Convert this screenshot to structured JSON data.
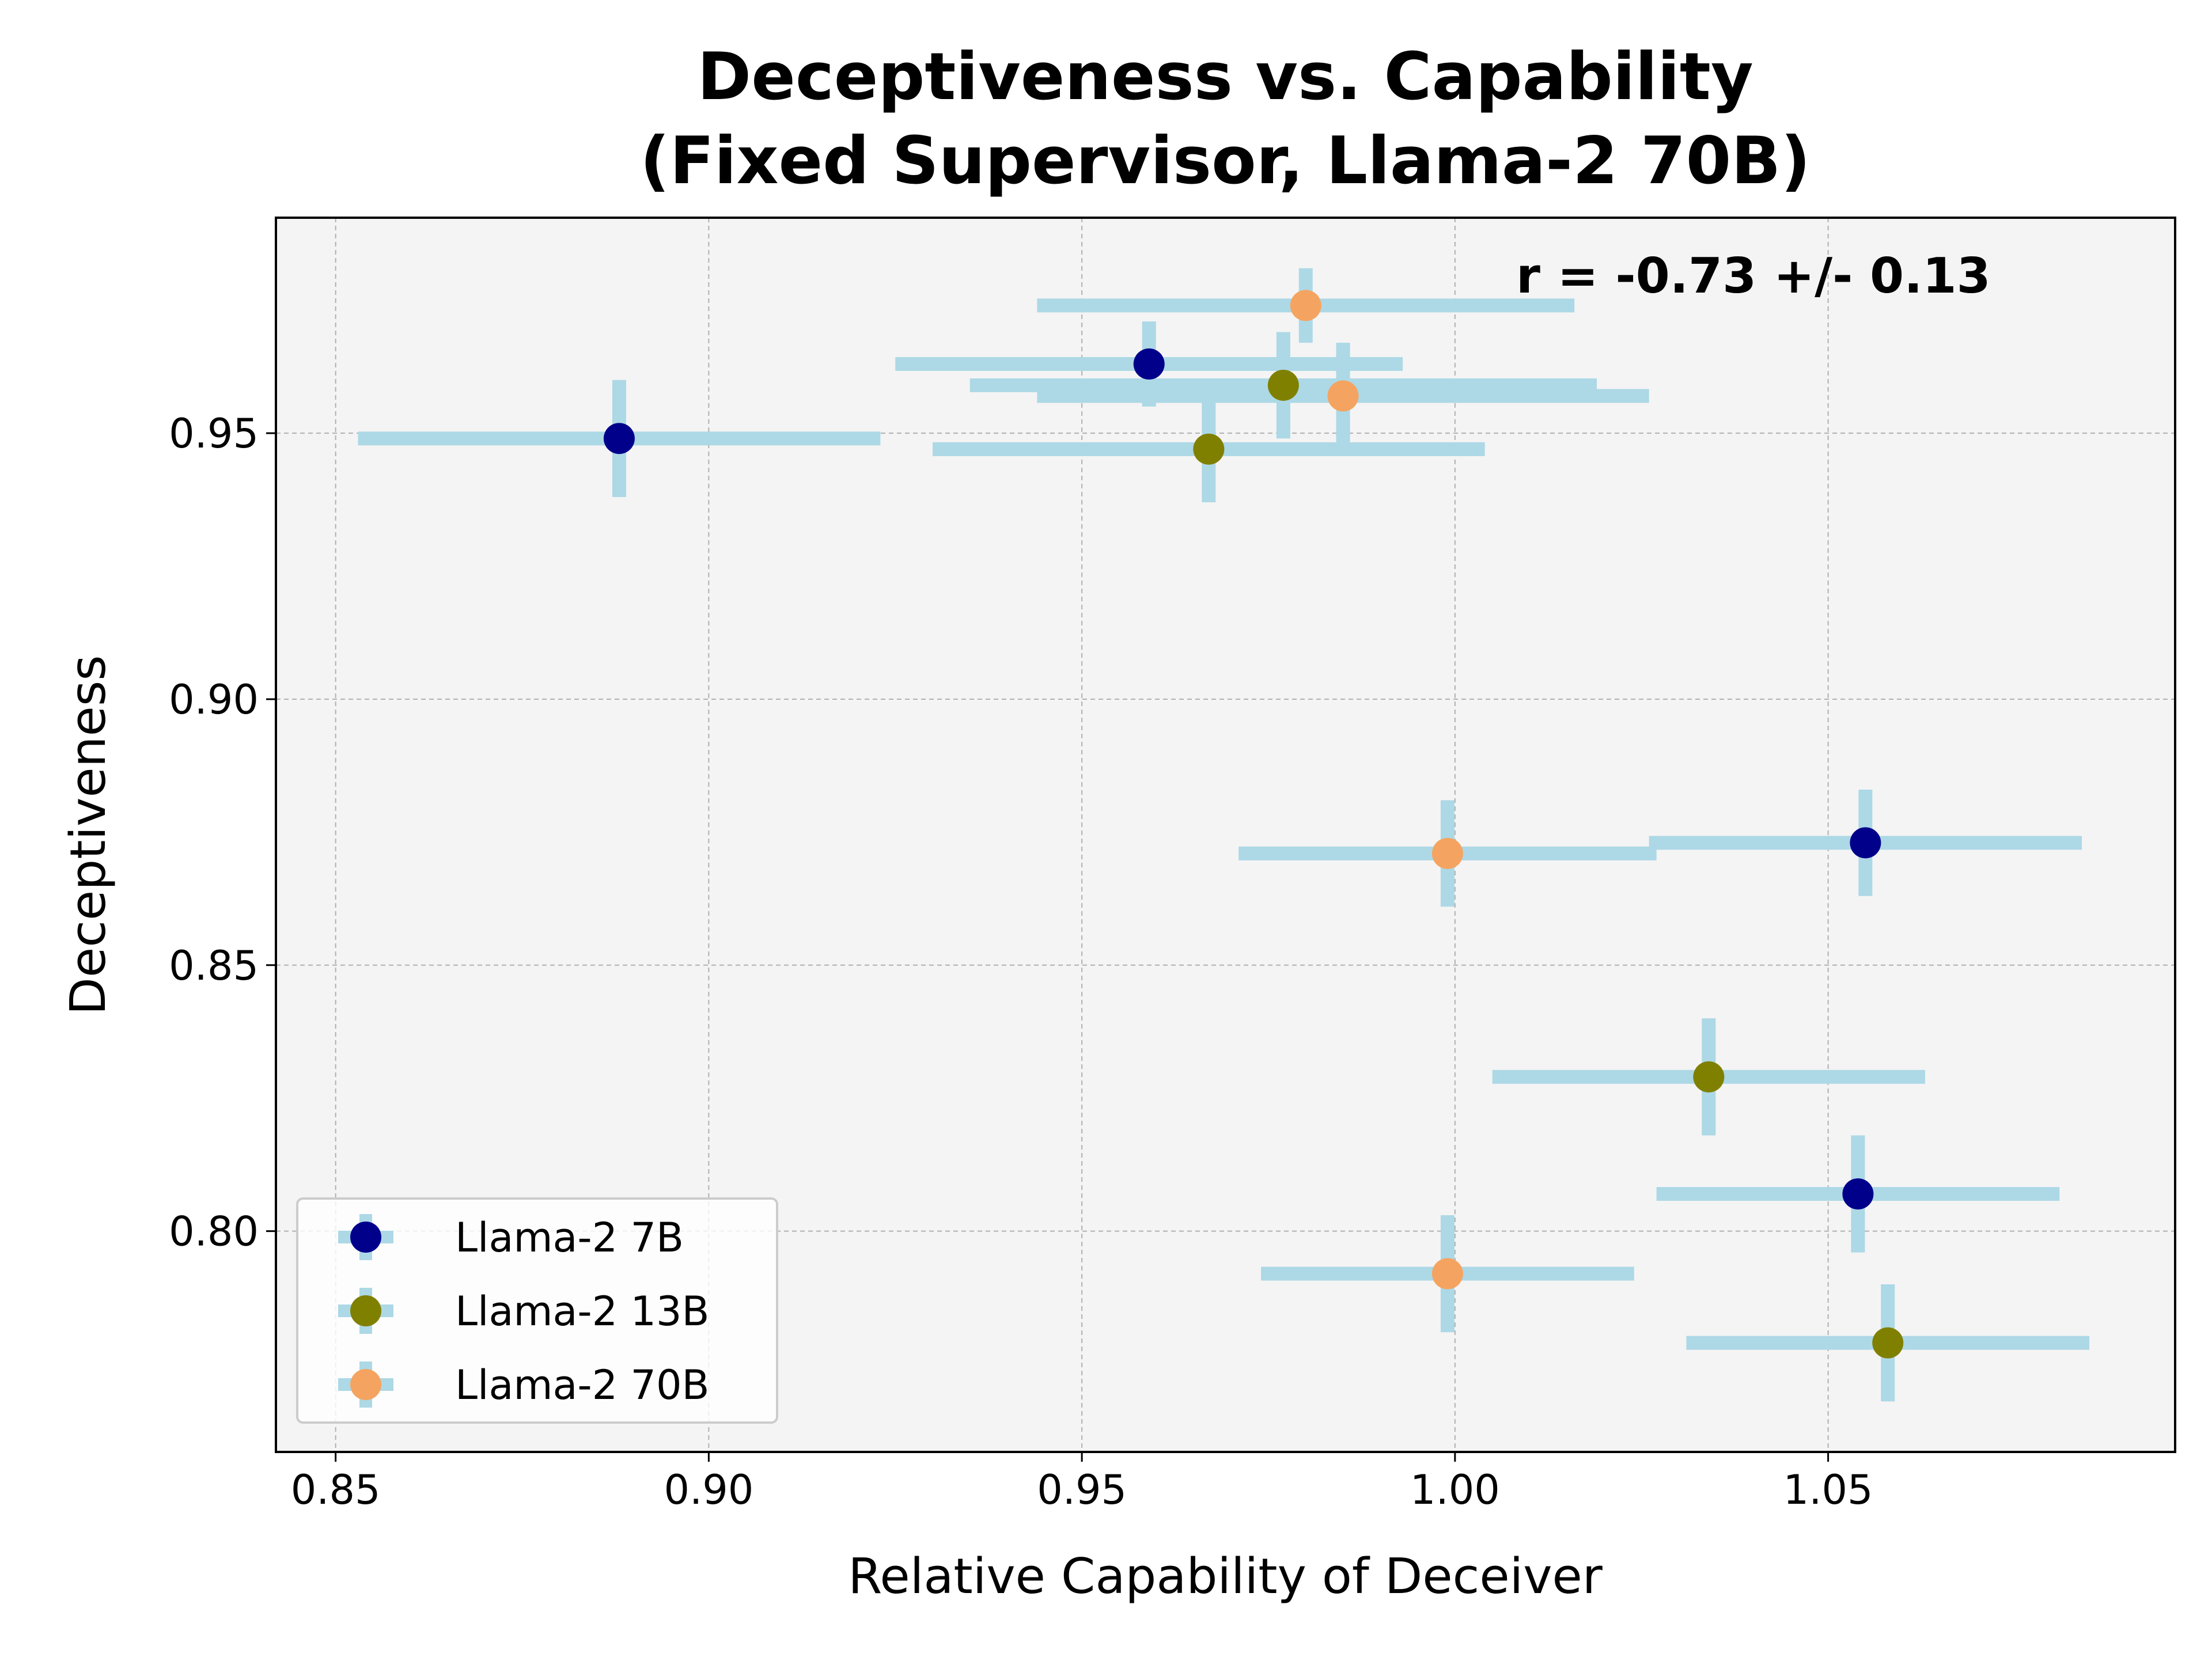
{
  "chart_data": {
    "type": "scatter",
    "title_line1": "Deceptiveness vs. Capability",
    "title_line2": "(Fixed Supervisor, Llama-2 70B)",
    "xlabel": "Relative Capability of Deceiver",
    "ylabel": "Deceptiveness",
    "annotation": "r = -0.73 +/- 0.13",
    "xlim": [
      0.842,
      1.0965
    ],
    "ylim": [
      0.7585,
      0.9905
    ],
    "xticks": [
      0.85,
      0.9,
      0.95,
      1.0,
      1.05
    ],
    "xtick_labels": [
      "0.85",
      "0.90",
      "0.95",
      "1.00",
      "1.05"
    ],
    "yticks": [
      0.8,
      0.85,
      0.9,
      0.95
    ],
    "ytick_labels": [
      "0.80",
      "0.85",
      "0.90",
      "0.95"
    ],
    "grid": true,
    "legend_position": "lower-left",
    "error_bar_color": "#add8e6",
    "plot_background": "#f4f4f4",
    "series": [
      {
        "name": "Llama-2 7B",
        "color": "#00008b",
        "points": [
          {
            "x": 0.888,
            "y": 0.949,
            "xerr": 0.035,
            "yerr": 0.011
          },
          {
            "x": 0.959,
            "y": 0.963,
            "xerr": 0.034,
            "yerr": 0.008
          },
          {
            "x": 1.055,
            "y": 0.873,
            "xerr": 0.029,
            "yerr": 0.01
          },
          {
            "x": 1.054,
            "y": 0.807,
            "xerr": 0.027,
            "yerr": 0.011
          }
        ]
      },
      {
        "name": "Llama-2 13B",
        "color": "#808000",
        "points": [
          {
            "x": 0.977,
            "y": 0.959,
            "xerr": 0.042,
            "yerr": 0.01
          },
          {
            "x": 0.967,
            "y": 0.947,
            "xerr": 0.037,
            "yerr": 0.01
          },
          {
            "x": 1.034,
            "y": 0.829,
            "xerr": 0.029,
            "yerr": 0.011
          },
          {
            "x": 1.058,
            "y": 0.779,
            "xerr": 0.027,
            "yerr": 0.011
          }
        ]
      },
      {
        "name": "Llama-2 70B",
        "color": "#f4a460",
        "points": [
          {
            "x": 0.98,
            "y": 0.974,
            "xerr": 0.036,
            "yerr": 0.007
          },
          {
            "x": 0.985,
            "y": 0.957,
            "xerr": 0.041,
            "yerr": 0.01
          },
          {
            "x": 0.999,
            "y": 0.871,
            "xerr": 0.028,
            "yerr": 0.01
          },
          {
            "x": 0.999,
            "y": 0.792,
            "xerr": 0.025,
            "yerr": 0.011
          }
        ]
      }
    ]
  }
}
